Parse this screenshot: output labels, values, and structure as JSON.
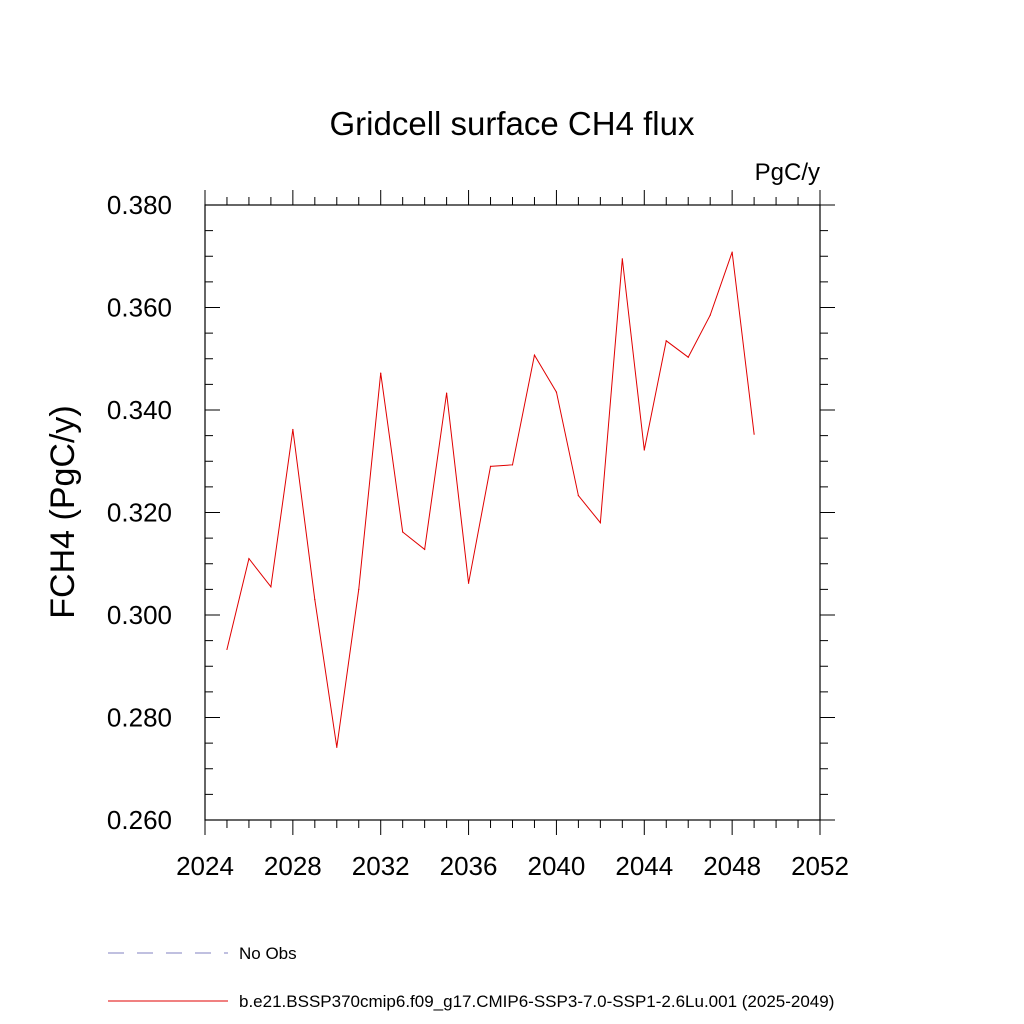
{
  "chart_data": {
    "type": "line",
    "title": "Gridcell surface CH4 flux",
    "units_label": "PgC/y",
    "xlabel": "",
    "ylabel": "FCH4  (PgC/y)",
    "xlim": [
      2024,
      2052
    ],
    "ylim": [
      0.26,
      0.38
    ],
    "xticks": [
      2024,
      2028,
      2032,
      2036,
      2040,
      2044,
      2048,
      2052
    ],
    "yticks": [
      0.26,
      0.28,
      0.3,
      0.32,
      0.34,
      0.36,
      0.38
    ],
    "ytick_labels": [
      "0.260",
      "0.280",
      "0.300",
      "0.320",
      "0.340",
      "0.360",
      "0.380"
    ],
    "grid": false,
    "series": [
      {
        "name": "b.e21.BSSP370cmip6.f09_g17.CMIP6-SSP3-7.0-SSP1-2.6Lu.001 (2025-2049)",
        "color": "#e00000",
        "x": [
          2025,
          2026,
          2027,
          2028,
          2029,
          2030,
          2031,
          2032,
          2033,
          2034,
          2035,
          2036,
          2037,
          2038,
          2039,
          2040,
          2041,
          2042,
          2043,
          2044,
          2045,
          2046,
          2047,
          2048,
          2049
        ],
        "y": [
          0.2933,
          0.311,
          0.3055,
          0.3362,
          0.303,
          0.2742,
          0.305,
          0.3472,
          0.3162,
          0.3128,
          0.3433,
          0.3062,
          0.329,
          0.3293,
          0.3507,
          0.3435,
          0.3233,
          0.318,
          0.3695,
          0.3322,
          0.3535,
          0.3503,
          0.3585,
          0.3708,
          0.3353
        ]
      }
    ],
    "legend": {
      "placement": "bottom",
      "entries": [
        {
          "label": "No Obs",
          "color": "#8080c0",
          "style": "dashed"
        },
        {
          "label": "b.e21.BSSP370cmip6.f09_g17.CMIP6-SSP3-7.0-SSP1-2.6Lu.001 (2025-2049)",
          "color": "#e00000",
          "style": "solid"
        }
      ]
    }
  }
}
